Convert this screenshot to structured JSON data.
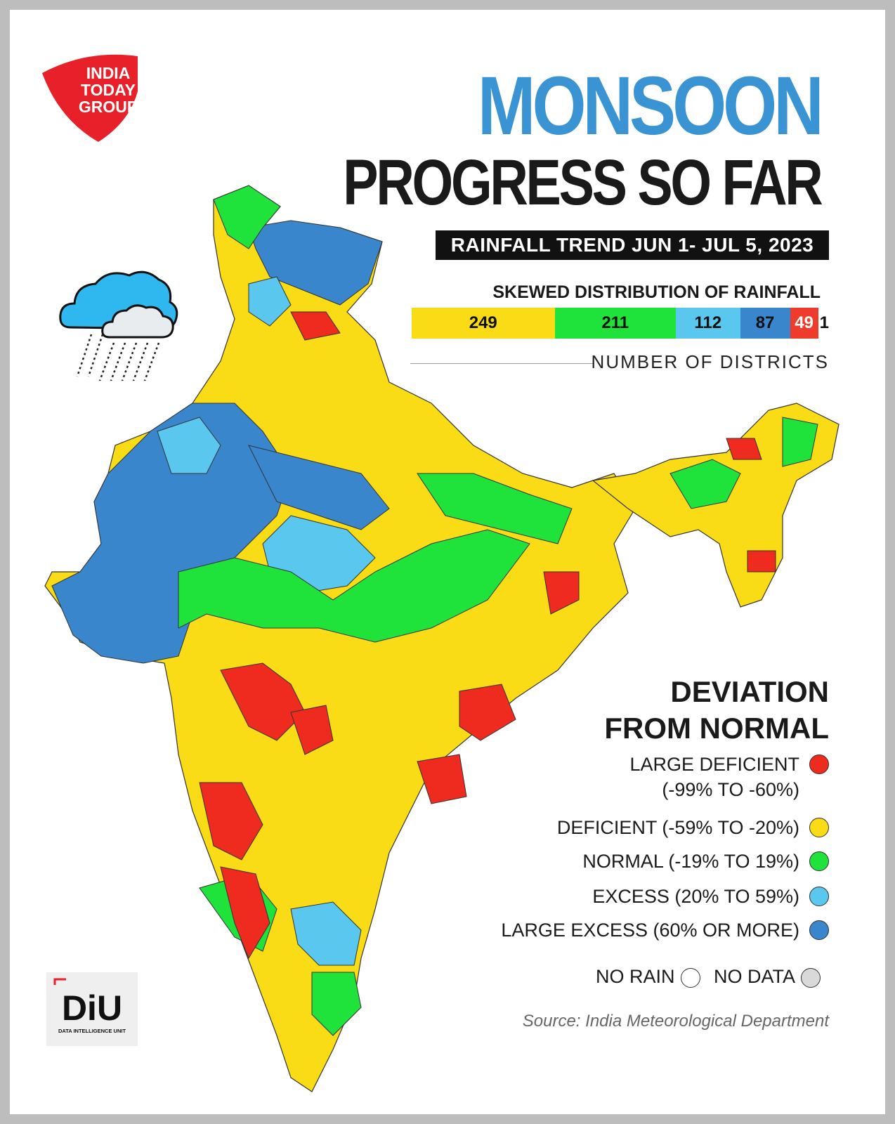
{
  "header": {
    "brand_lines": [
      "INDIA",
      "TODAY",
      "GROUP"
    ],
    "title_line1": "MONSOON",
    "title_line2": "PROGRESS SO FAR",
    "subtitle": "RAINFALL TREND JUN 1- JUL 5, 2023"
  },
  "distribution": {
    "title": "SKEWED DISTRIBUTION OF RAINFALL",
    "caption": "NUMBER OF DISTRICTS",
    "segments": [
      {
        "label": "249",
        "count": 249,
        "color": "#f9dc16"
      },
      {
        "label": "211",
        "count": 211,
        "color": "#1fe33a"
      },
      {
        "label": "112",
        "count": 112,
        "color": "#59c7ee"
      },
      {
        "label": "87",
        "count": 87,
        "color": "#3a86cc"
      },
      {
        "label": "49",
        "count": 49,
        "color": "#ef3b2c"
      }
    ],
    "tail_label": "1"
  },
  "legend": {
    "title_line1": "DEVIATION",
    "title_line2": "FROM NORMAL",
    "items": [
      {
        "label": "LARGE DEFICIENT",
        "range": "(-99% TO -60%)",
        "color": "#ef2b1f",
        "icon": "circle-swatch"
      },
      {
        "label": "DEFICIENT (-59% TO -20%)",
        "range": "",
        "color": "#f9dc16",
        "icon": "circle-swatch"
      },
      {
        "label": "NORMAL (-19% TO 19%)",
        "range": "",
        "color": "#1fe33a",
        "icon": "circle-swatch"
      },
      {
        "label": "EXCESS (20% TO 59%)",
        "range": "",
        "color": "#59c7ee",
        "icon": "circle-swatch"
      },
      {
        "label": "LARGE EXCESS (60% OR MORE)",
        "range": "",
        "color": "#3a86cc",
        "icon": "circle-swatch"
      }
    ],
    "no_rain": {
      "label": "NO RAIN",
      "color": "#ffffff"
    },
    "no_data": {
      "label": "NO DATA",
      "color": "#d9d9d9"
    }
  },
  "footer": {
    "source": "Source: India Meteorological Department",
    "diu_logo": "DiU",
    "diu_tagline": "DATA INTELLIGENCE UNIT"
  },
  "icons": {
    "weather": "rain-cloud-icon",
    "brand": "india-today-logo",
    "diu": "diu-logo"
  }
}
